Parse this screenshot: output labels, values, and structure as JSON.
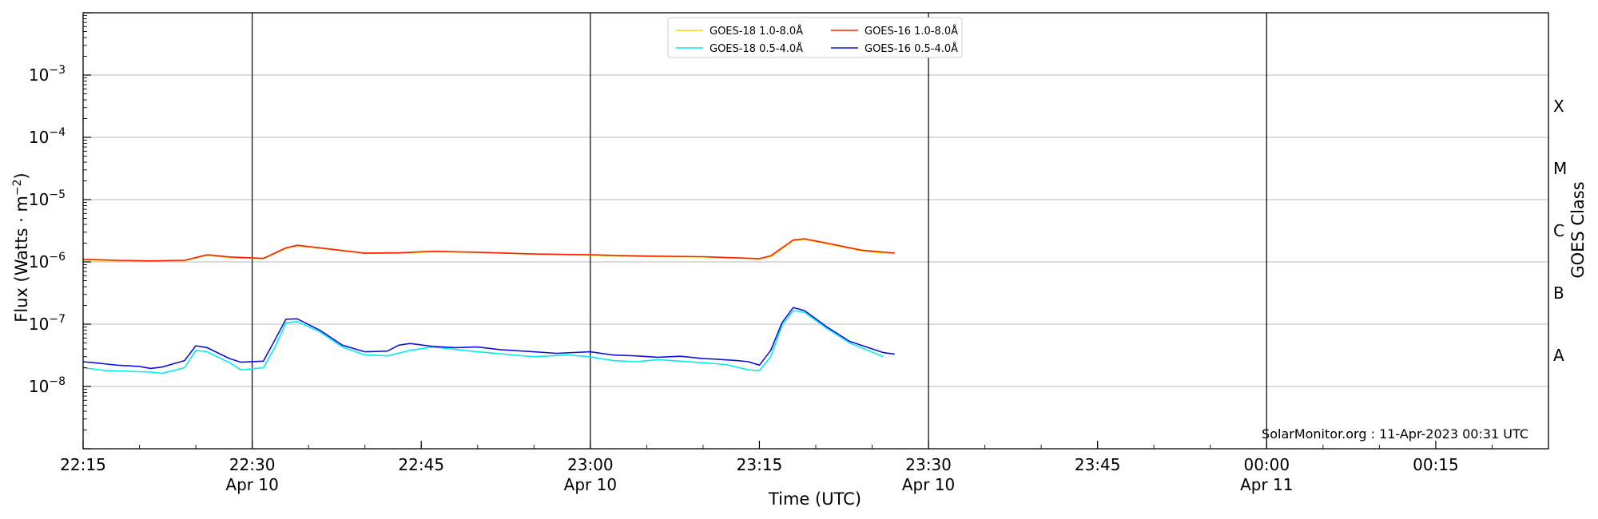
{
  "chart_data": {
    "type": "line",
    "xlabel": "Time (UTC)",
    "ylabel_main": "Flux (Watts · m",
    "ylabel_sup": "−2",
    "ylabel_close": ")",
    "y2label": "GOES Class",
    "y_scale": "log",
    "ylim": [
      1e-09,
      0.01
    ],
    "xlim": [
      "2023-04-10T22:15",
      "2023-04-11T00:25"
    ],
    "x_ticks": [
      {
        "time": "2023-04-10T22:15",
        "line1": "22:15",
        "line2": ""
      },
      {
        "time": "2023-04-10T22:30",
        "line1": "22:30",
        "line2": "Apr 10"
      },
      {
        "time": "2023-04-10T22:45",
        "line1": "22:45",
        "line2": ""
      },
      {
        "time": "2023-04-10T23:00",
        "line1": "23:00",
        "line2": "Apr 10"
      },
      {
        "time": "2023-04-10T23:15",
        "line1": "23:15",
        "line2": ""
      },
      {
        "time": "2023-04-10T23:30",
        "line1": "23:30",
        "line2": "Apr 10"
      },
      {
        "time": "2023-04-10T23:45",
        "line1": "23:45",
        "line2": ""
      },
      {
        "time": "2023-04-11T00:00",
        "line1": "00:00",
        "line2": "Apr 11"
      },
      {
        "time": "2023-04-11T00:15",
        "line1": "00:15",
        "line2": ""
      }
    ],
    "vertical_lines": [
      "2023-04-10T22:30",
      "2023-04-10T23:00",
      "2023-04-10T23:30",
      "2023-04-11T00:00"
    ],
    "y_ticks": [
      {
        "value": 1e-08,
        "base": "10",
        "exp": "−8"
      },
      {
        "value": 1e-07,
        "base": "10",
        "exp": "−7"
      },
      {
        "value": 1e-06,
        "base": "10",
        "exp": "−6"
      },
      {
        "value": 1e-05,
        "base": "10",
        "exp": "−5"
      },
      {
        "value": 0.0001,
        "base": "10",
        "exp": "−4"
      },
      {
        "value": 0.001,
        "base": "10",
        "exp": "−3"
      }
    ],
    "goes_classes": [
      {
        "label": "A",
        "value": 3.16e-08
      },
      {
        "label": "B",
        "value": 3.16e-07
      },
      {
        "label": "C",
        "value": 3.16e-06
      },
      {
        "label": "M",
        "value": 3.16e-05
      },
      {
        "label": "X",
        "value": 0.000316
      }
    ],
    "grid": "horizontal at decades",
    "legend_placement": "top-center",
    "legend": [
      {
        "name": "GOES-18 1.0-8.0Å",
        "color": "#ffd700"
      },
      {
        "name": "GOES-16 1.0-8.0Å",
        "color": "#ff2000"
      },
      {
        "name": "GOES-18 0.5-4.0Å",
        "color": "#00eeee"
      },
      {
        "name": "GOES-16 0.5-4.0Å",
        "color": "#1010dd"
      }
    ],
    "credit": "SolarMonitor.org : 11-Apr-2023 00:31 UTC",
    "series": [
      {
        "name": "GOES-18 1.0-8.0Å",
        "color": "#ffd700",
        "x": [
          "22:15",
          "22:18",
          "22:21",
          "22:24",
          "22:26",
          "22:28",
          "22:31",
          "22:33",
          "22:34",
          "22:37",
          "22:40",
          "22:43",
          "22:46",
          "22:50",
          "22:55",
          "23:00",
          "23:05",
          "23:10",
          "23:15",
          "23:16",
          "23:18",
          "23:19",
          "23:21",
          "23:24",
          "23:26"
        ],
        "y": [
          1.08e-06,
          1.05e-06,
          1.03e-06,
          1.05e-06,
          1.28e-06,
          1.18e-06,
          1.13e-06,
          1.65e-06,
          1.82e-06,
          1.58e-06,
          1.37e-06,
          1.38e-06,
          1.46e-06,
          1.42e-06,
          1.33e-06,
          1.28e-06,
          1.22e-06,
          1.2e-06,
          1.12e-06,
          1.22e-06,
          2.2e-06,
          2.3e-06,
          1.95e-06,
          1.52e-06,
          1.38e-06
        ]
      },
      {
        "name": "GOES-16 1.0-8.0Å",
        "color": "#ff2000",
        "x": [
          "22:15",
          "22:18",
          "22:21",
          "22:24",
          "22:26",
          "22:28",
          "22:31",
          "22:33",
          "22:34",
          "22:37",
          "22:40",
          "22:43",
          "22:46",
          "22:50",
          "22:55",
          "23:00",
          "23:05",
          "23:10",
          "23:15",
          "23:16",
          "23:18",
          "23:19",
          "23:21",
          "23:24",
          "23:27"
        ],
        "y": [
          1.1e-06,
          1.06e-06,
          1.04e-06,
          1.06e-06,
          1.3e-06,
          1.2e-06,
          1.14e-06,
          1.68e-06,
          1.85e-06,
          1.6e-06,
          1.38e-06,
          1.4e-06,
          1.48e-06,
          1.43e-06,
          1.34e-06,
          1.3e-06,
          1.24e-06,
          1.21e-06,
          1.13e-06,
          1.25e-06,
          2.25e-06,
          2.35e-06,
          2e-06,
          1.55e-06,
          1.38e-06
        ]
      },
      {
        "name": "GOES-18 0.5-4.0Å",
        "color": "#00eeee",
        "x": [
          "22:15",
          "22:17",
          "22:19",
          "22:21",
          "22:22",
          "22:24",
          "22:25",
          "22:26",
          "22:28",
          "22:29",
          "22:31",
          "22:32",
          "22:33",
          "22:34",
          "22:36",
          "22:38",
          "22:40",
          "22:42",
          "22:44",
          "22:46",
          "22:50",
          "22:55",
          "22:58",
          "23:00",
          "23:02",
          "23:04",
          "23:06",
          "23:08",
          "23:10",
          "23:12",
          "23:14",
          "23:15",
          "23:16",
          "23:17",
          "23:18",
          "23:19",
          "23:21",
          "23:23",
          "23:26"
        ],
        "y": [
          2e-08,
          1.8e-08,
          1.75e-08,
          1.7e-08,
          1.62e-08,
          2e-08,
          3.8e-08,
          3.6e-08,
          2.4e-08,
          1.85e-08,
          2e-08,
          4.2e-08,
          1.05e-07,
          1.1e-07,
          7.5e-08,
          4.3e-08,
          3.2e-08,
          3.1e-08,
          3.8e-08,
          4.3e-08,
          3.6e-08,
          3e-08,
          3.2e-08,
          3e-08,
          2.6e-08,
          2.5e-08,
          2.7e-08,
          2.55e-08,
          2.4e-08,
          2.25e-08,
          1.85e-08,
          1.8e-08,
          3e-08,
          9.5e-08,
          1.65e-07,
          1.55e-07,
          8.5e-08,
          5e-08,
          3e-08
        ]
      },
      {
        "name": "GOES-16 0.5-4.0Å",
        "color": "#1010dd",
        "x": [
          "22:15",
          "22:16",
          "22:18",
          "22:20",
          "22:21",
          "22:22",
          "22:24",
          "22:25",
          "22:26",
          "22:28",
          "22:29",
          "22:31",
          "22:32",
          "22:33",
          "22:34",
          "22:36",
          "22:38",
          "22:40",
          "22:42",
          "22:43",
          "22:44",
          "22:46",
          "22:48",
          "22:50",
          "22:52",
          "22:55",
          "22:57",
          "23:00",
          "23:02",
          "23:04",
          "23:06",
          "23:08",
          "23:10",
          "23:11",
          "23:13",
          "23:14",
          "23:15",
          "23:16",
          "23:17",
          "23:18",
          "23:19",
          "23:21",
          "23:23",
          "23:26",
          "23:27"
        ],
        "y": [
          2.5e-08,
          2.4e-08,
          2.2e-08,
          2.1e-08,
          1.95e-08,
          2.05e-08,
          2.6e-08,
          4.5e-08,
          4.2e-08,
          2.8e-08,
          2.45e-08,
          2.55e-08,
          5.5e-08,
          1.2e-07,
          1.22e-07,
          8e-08,
          4.6e-08,
          3.6e-08,
          3.7e-08,
          4.6e-08,
          4.9e-08,
          4.4e-08,
          4.2e-08,
          4.3e-08,
          3.9e-08,
          3.6e-08,
          3.4e-08,
          3.6e-08,
          3.2e-08,
          3.1e-08,
          2.95e-08,
          3.05e-08,
          2.8e-08,
          2.75e-08,
          2.6e-08,
          2.5e-08,
          2.2e-08,
          3.8e-08,
          1.05e-07,
          1.85e-07,
          1.65e-07,
          9e-08,
          5.3e-08,
          3.5e-08,
          3.3e-08
        ]
      }
    ]
  }
}
